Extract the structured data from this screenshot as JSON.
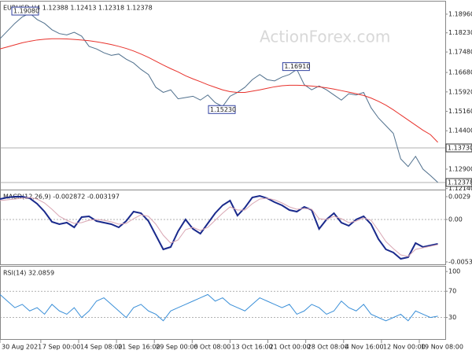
{
  "watermark": "ActionForex.com",
  "chart_data": [
    {
      "type": "line",
      "title": "EURUSD,H4 1.12388 1.12413 1.12318 1.12378",
      "xlim": [
        0,
        60
      ],
      "ylim": [
        1.1207,
        1.1939
      ],
      "yticks": [
        {
          "value": 1.1896,
          "label": "1.18960"
        },
        {
          "value": 1.1823,
          "label": "1.18230"
        },
        {
          "value": 1.1748,
          "label": "1.17480"
        },
        {
          "value": 1.1668,
          "label": "1.16680"
        },
        {
          "value": 1.1592,
          "label": "1.15920"
        },
        {
          "value": 1.1516,
          "label": "1.15160"
        },
        {
          "value": 1.144,
          "label": "1.14400"
        },
        {
          "value": 1.129,
          "label": "1.12900"
        },
        {
          "value": 1.1214,
          "label": "1.12140"
        }
      ],
      "levels": [
        {
          "value": 1.1373,
          "label": "1.13730"
        },
        {
          "value": 1.12378,
          "label": "1.12378"
        }
      ],
      "annotations": [
        {
          "label": "1.19080",
          "x": 3.5,
          "y": 1.1908
        },
        {
          "label": "1.15230",
          "x": 30,
          "y": 1.1523
        },
        {
          "label": "1.16910",
          "x": 40,
          "y": 1.1691
        }
      ],
      "series": [
        {
          "color": "#4f6f8c",
          "values": [
            1.18,
            1.183,
            1.186,
            1.1885,
            1.19,
            1.1875,
            1.186,
            1.1835,
            1.182,
            1.1815,
            1.1825,
            1.181,
            1.177,
            1.176,
            1.1745,
            1.1735,
            1.174,
            1.172,
            1.1705,
            1.168,
            1.166,
            1.161,
            1.159,
            1.16,
            1.1565,
            1.157,
            1.1575,
            1.156,
            1.158,
            1.155,
            1.1535,
            1.1575,
            1.159,
            1.161,
            1.164,
            1.166,
            1.164,
            1.1635,
            1.165,
            1.166,
            1.168,
            1.162,
            1.16,
            1.1615,
            1.16,
            1.158,
            1.156,
            1.1585,
            1.158,
            1.159,
            1.153,
            1.149,
            1.146,
            1.143,
            1.133,
            1.13,
            1.134,
            1.129,
            1.1265,
            1.1238
          ]
        },
        {
          "color": "#e8322c",
          "values": [
            1.176,
            1.1768,
            1.1776,
            1.1784,
            1.179,
            1.1795,
            1.1798,
            1.18,
            1.18,
            1.1799,
            1.1797,
            1.1795,
            1.1792,
            1.1788,
            1.1783,
            1.1777,
            1.177,
            1.1762,
            1.1752,
            1.174,
            1.1727,
            1.1712,
            1.1697,
            1.1683,
            1.167,
            1.1655,
            1.1643,
            1.1632,
            1.162,
            1.161,
            1.16,
            1.1593,
            1.159,
            1.159,
            1.1595,
            1.16,
            1.1606,
            1.1612,
            1.1616,
            1.1618,
            1.1618,
            1.1617,
            1.1615,
            1.1612,
            1.1608,
            1.1603,
            1.1597,
            1.1591,
            1.1585,
            1.1578,
            1.1568,
            1.1555,
            1.154,
            1.1522,
            1.1502,
            1.1482,
            1.1462,
            1.1442,
            1.1425,
            1.1395
          ]
        }
      ]
    },
    {
      "type": "line",
      "title": "MACD(12,26,9) -0.002872 -0.003197",
      "xlim": [
        0,
        60
      ],
      "ylim": [
        -0.0058,
        0.0035
      ],
      "yticks": [
        0.0029,
        {
          "value": 0,
          "label": "0.00"
        },
        -0.005396
      ],
      "levels": [
        {
          "value": 0
        }
      ],
      "series": [
        {
          "color": "#1a2a8c",
          "values": [
            0.0026,
            0.0028,
            0.0029,
            0.0029,
            0.0027,
            0.002,
            0.001,
            -0.0003,
            -0.0006,
            -0.0004,
            -0.001,
            0.0003,
            0.0004,
            -0.0002,
            -0.0004,
            -0.0006,
            -0.001,
            -0.0002,
            0.001,
            0.0008,
            -0.0002,
            -0.002,
            -0.0038,
            -0.0035,
            -0.0015,
            0,
            -0.0012,
            -0.0018,
            -0.0005,
            0.0008,
            0.0018,
            0.0024,
            0.0005,
            0.0015,
            0.0028,
            0.003,
            0.0027,
            0.0022,
            0.0018,
            0.0012,
            0.001,
            0.0016,
            0.0012,
            -0.0012,
            0,
            0.0008,
            -0.0004,
            -0.0008,
            0,
            0.0004,
            -0.0006,
            -0.0025,
            -0.0038,
            -0.0042,
            -0.005,
            -0.0048,
            -0.003,
            -0.0035,
            -0.0033,
            -0.0031
          ]
        },
        {
          "color": "#d9a6b3",
          "values": [
            0.0024,
            0.0025,
            0.0026,
            0.0027,
            0.0028,
            0.0026,
            0.0021,
            0.0013,
            0.0004,
            -0.0001,
            -0.0005,
            -0.0004,
            -0.0001,
            0,
            -0.0001,
            -0.0003,
            -0.0006,
            -0.0005,
            0.0001,
            0.0006,
            0.0004,
            -0.0006,
            -0.002,
            -0.003,
            -0.0026,
            -0.0013,
            -0.001,
            -0.0014,
            -0.001,
            -0.0001,
            0.0008,
            0.0016,
            0.0012,
            0.0012,
            0.002,
            0.0026,
            0.0027,
            0.0025,
            0.0021,
            0.0016,
            0.0013,
            0.0014,
            0.0013,
            0.0001,
            0,
            0.0004,
            0.0001,
            -0.0004,
            -0.0002,
            0.0002,
            -0.0001,
            -0.0014,
            -0.0028,
            -0.0037,
            -0.0045,
            -0.0047,
            -0.0038,
            -0.0036,
            -0.0034,
            -0.0032
          ]
        }
      ]
    },
    {
      "type": "line",
      "title": "RSI(14) 32.0859",
      "xlim": [
        0,
        60
      ],
      "ylim": [
        -4,
        105
      ],
      "yticks": [
        100,
        70,
        30
      ],
      "levels": [
        {
          "value": 70
        },
        {
          "value": 30
        }
      ],
      "xticks": [
        {
          "value": 0,
          "label": "30 Aug 2021"
        },
        {
          "value": 5.5,
          "label": "7 Sep 00:00"
        },
        {
          "value": 10.6,
          "label": "14 Sep 08:00"
        },
        {
          "value": 15.7,
          "label": "21 Sep 16:00"
        },
        {
          "value": 20.8,
          "label": "29 Sep 00:00"
        },
        {
          "value": 25.9,
          "label": "6 Oct 08:00"
        },
        {
          "value": 31,
          "label": "13 Oct 16:00"
        },
        {
          "value": 36.1,
          "label": "21 Oct 00:00"
        },
        {
          "value": 41.2,
          "label": "28 Oct 08:00"
        },
        {
          "value": 46.3,
          "label": "4 Nov 16:00"
        },
        {
          "value": 51.4,
          "label": "12 Nov 00:00"
        },
        {
          "value": 56.5,
          "label": "19 Nov 08:00"
        }
      ],
      "series": [
        {
          "color": "#3a8fd8",
          "values": [
            65,
            55,
            45,
            50,
            40,
            45,
            35,
            50,
            40,
            35,
            45,
            30,
            40,
            55,
            60,
            50,
            40,
            30,
            45,
            50,
            40,
            35,
            25,
            40,
            45,
            50,
            55,
            60,
            65,
            55,
            60,
            50,
            45,
            40,
            50,
            60,
            55,
            50,
            45,
            50,
            35,
            40,
            50,
            45,
            35,
            40,
            55,
            45,
            40,
            50,
            35,
            30,
            25,
            30,
            35,
            25,
            40,
            35,
            30,
            32.0859
          ]
        }
      ]
    }
  ]
}
